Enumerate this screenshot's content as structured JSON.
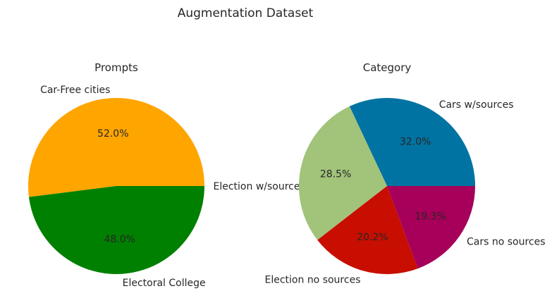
{
  "figure": {
    "title": "Augmentation Dataset"
  },
  "chart_data": [
    {
      "type": "pie",
      "title": "Prompts",
      "categories": [
        "Election w/sources",
        "Car-Free cities",
        "Electoral College"
      ],
      "values": [
        0.0,
        52.0,
        48.0
      ],
      "percent_labels": [
        "",
        "52.0%",
        "48.0%"
      ],
      "colors": [
        "#4c72b0",
        "#ffa500",
        "#008000"
      ],
      "startangle_deg": 0,
      "direction": "counterclockwise"
    },
    {
      "type": "pie",
      "title": "Category",
      "categories": [
        "Cars w/sources",
        "Election w/sources",
        "Election no sources",
        "Cars no sources"
      ],
      "display_labels": [
        "Cars w/sources",
        "",
        "Election no sources",
        "Cars no sources"
      ],
      "values": [
        32.0,
        28.5,
        20.2,
        19.3
      ],
      "percent_labels": [
        "32.0%",
        "28.5%",
        "20.2%",
        "19.3%"
      ],
      "colors": [
        "#0173a2",
        "#a1c37a",
        "#c80e00",
        "#a6005a"
      ],
      "startangle_deg": 0,
      "direction": "counterclockwise"
    }
  ]
}
